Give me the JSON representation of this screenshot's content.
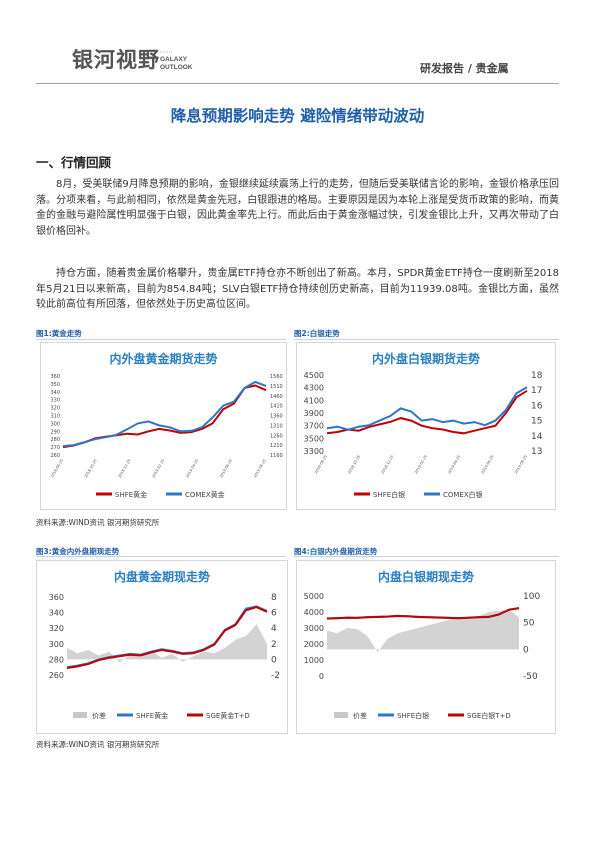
{
  "header": {
    "logo_cn": "银河视野",
    "logo_en_1": "GALAXY",
    "logo_en_2": "OUTLOOK",
    "right": "研发报告 / 贵金属"
  },
  "title": "降息预期影响走势 避险情绪带动波动",
  "section1": "一、行情回顾",
  "para1": "8月，受美联储9月降息预期的影响，金银继续延续震荡上行的走势，但随后受美联储言论的影响，金银价格承压回落。分项来看，与此前相同，依然是黄金先冠，白银跟进的格局。主要原因是因为本轮上涨是受货币政策的影响，而黄金的金融与避险属性明显强于白银，因此黄金率先上行。而此后由于黄金涨幅过快，引发金银比上升，又再次带动了白银价格回补。",
  "para2": "持仓方面，随着贵金属价格攀升，贵金属ETF持仓亦不断创出了新高。本月，SPDR黄金ETF持仓一度刷新至2018年5月21日以来新高，目前为854.84吨；SLV白银ETF持仓持续创历史新高，目前为11939.08吨。金银比方面，虽然较此前高位有所回落，但依然处于历史高位区间。",
  "fig1_label": "图1:黄金走势",
  "fig2_label": "图2:白银走势",
  "fig3_label": "图3:黄金内外盘期现走势",
  "fig4_label": "图4:白银内外盘期货走势",
  "source1": "资料来源:WIND资讯   银河期货研究所",
  "source2": "资料来源:WIND资讯   银河期货研究所",
  "chart_data": [
    {
      "type": "line",
      "title": "内外盘黄金期货走势",
      "x_ticks": [
        "2018-08-25",
        "2018-10-25",
        "2018-12-25",
        "2019-02-25",
        "2019-04-25",
        "2019-06-25",
        "2019-08-25"
      ],
      "left_axis": {
        "ticks": [
          260,
          270,
          280,
          290,
          300,
          310,
          320,
          330,
          340,
          350,
          360
        ],
        "ylim": [
          260,
          360
        ]
      },
      "right_axis": {
        "ticks": [
          1160,
          1210,
          1260,
          1310,
          1360,
          1410,
          1460,
          1510,
          1560
        ],
        "ylim": [
          1160,
          1560
        ]
      },
      "series": [
        {
          "name": "SHFE黄金",
          "axis": "left",
          "color": "#c00000",
          "values": [
            270,
            272,
            276,
            281,
            283,
            285,
            287,
            286,
            290,
            293,
            291,
            288,
            289,
            293,
            300,
            318,
            325,
            345,
            348,
            342
          ]
        },
        {
          "name": "COMEX黄金",
          "axis": "right",
          "color": "#2e75c6",
          "values": [
            1205,
            1210,
            1225,
            1240,
            1250,
            1262,
            1290,
            1320,
            1330,
            1310,
            1300,
            1280,
            1282,
            1300,
            1350,
            1410,
            1430,
            1500,
            1530,
            1510
          ]
        }
      ]
    },
    {
      "type": "line",
      "title": "内外盘白银期货走势",
      "x_ticks": [
        "2018-08-25",
        "2018-10-25",
        "2018-12-25",
        "2019-02-25",
        "2019-04-25",
        "2019-06-25",
        "2019-08-25"
      ],
      "left_axis": {
        "ticks": [
          3300,
          3500,
          3700,
          3900,
          4100,
          4300,
          4500
        ],
        "ylim": [
          3300,
          4500
        ]
      },
      "right_axis": {
        "ticks": [
          13,
          14,
          15,
          16,
          17,
          18
        ],
        "ylim": [
          13,
          18
        ]
      },
      "series": [
        {
          "name": "SHFE白银",
          "axis": "left",
          "color": "#c00000",
          "values": [
            3580,
            3600,
            3640,
            3620,
            3680,
            3720,
            3760,
            3820,
            3780,
            3700,
            3660,
            3640,
            3600,
            3580,
            3620,
            3660,
            3700,
            3900,
            4150,
            4250
          ]
        },
        {
          "name": "COMEX白银",
          "axis": "right",
          "color": "#2e75c6",
          "values": [
            14.5,
            14.6,
            14.4,
            14.6,
            14.7,
            15.0,
            15.3,
            15.8,
            15.6,
            15.0,
            15.1,
            14.9,
            15.0,
            14.8,
            14.9,
            14.7,
            15.0,
            15.7,
            16.8,
            17.2
          ]
        }
      ]
    },
    {
      "type": "line",
      "title": "内盘黄金期现走势",
      "left_axis": {
        "ticks": [
          260,
          280,
          300,
          320,
          340,
          360
        ],
        "ylim": [
          260,
          360
        ]
      },
      "right_axis": {
        "ticks": [
          -2,
          0,
          2,
          4,
          6,
          8
        ],
        "ylim": [
          -2,
          8
        ]
      },
      "series": [
        {
          "name": "价差",
          "axis": "right",
          "color": "#c8c8c8",
          "values": [
            1.5,
            0.8,
            1.2,
            0.5,
            1.0,
            -0.4,
            0.6,
            0.3,
            1.1,
            0.2,
            0.7,
            -0.3,
            0.4,
            1.0,
            0.8,
            1.5,
            2.5,
            3.0,
            4.5,
            2.0
          ]
        },
        {
          "name": "SHFE黄金",
          "axis": "left",
          "color": "#2e75c6",
          "values": [
            270,
            272,
            275,
            280,
            283,
            285,
            287,
            286,
            290,
            293,
            291,
            288,
            289,
            293,
            300,
            318,
            325,
            345,
            348,
            342
          ]
        },
        {
          "name": "SGE黄金T+D",
          "axis": "left",
          "color": "#c00000",
          "values": [
            269,
            271,
            274,
            279,
            282,
            284,
            286,
            285,
            289,
            292,
            290,
            287,
            288,
            292,
            299,
            317,
            324,
            343,
            347,
            341
          ]
        }
      ]
    },
    {
      "type": "line",
      "title": "内盘白银期现走势",
      "left_axis": {
        "ticks": [
          0,
          1000,
          2000,
          3000,
          4000,
          5000
        ],
        "ylim": [
          0,
          5000
        ]
      },
      "right_axis": {
        "ticks": [
          -50,
          0,
          50,
          100
        ],
        "ylim": [
          -50,
          100
        ]
      },
      "series": [
        {
          "name": "价差",
          "axis": "right",
          "color": "#c8c8c8",
          "values": [
            35,
            30,
            40,
            38,
            25,
            -5,
            20,
            30,
            35,
            40,
            45,
            50,
            55,
            60,
            58,
            62,
            70,
            72,
            74,
            60
          ]
        },
        {
          "name": "SHFE白银",
          "axis": "left",
          "color": "#2e75c6",
          "values": [
            3600,
            3620,
            3650,
            3640,
            3680,
            3700,
            3720,
            3760,
            3740,
            3700,
            3680,
            3660,
            3640,
            3620,
            3650,
            3680,
            3700,
            3850,
            4150,
            4250
          ]
        },
        {
          "name": "SGE白银T+D",
          "axis": "left",
          "color": "#c00000",
          "values": [
            3590,
            3610,
            3640,
            3630,
            3670,
            3690,
            3710,
            3750,
            3730,
            3690,
            3670,
            3650,
            3630,
            3610,
            3640,
            3670,
            3690,
            3840,
            4140,
            4240
          ]
        }
      ]
    }
  ]
}
